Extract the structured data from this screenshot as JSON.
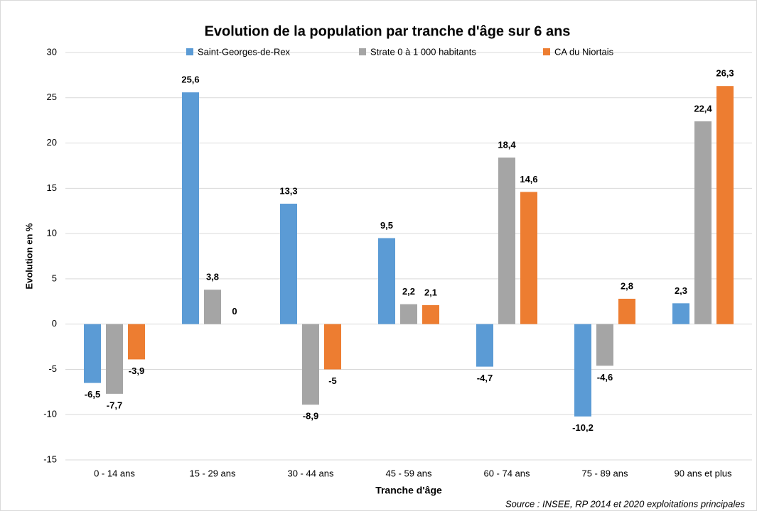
{
  "chart_data": {
    "type": "bar",
    "title": "Evolution de la population par tranche d'âge sur 6 ans",
    "x_label": "Tranche d'âge",
    "y_label": "Evolution en %",
    "source": "Source : INSEE, RP 2014 et 2020 exploitations principales",
    "categories": [
      "0 - 14 ans",
      "15 - 29 ans",
      "30 - 44 ans",
      "45 - 59 ans",
      "60 - 74 ans",
      "75 - 89 ans",
      "90 ans et plus"
    ],
    "series": [
      {
        "name": "Saint-Georges-de-Rex",
        "color": "#5b9bd5",
        "values": [
          -6.5,
          25.6,
          13.3,
          9.5,
          -4.7,
          -10.2,
          2.3
        ],
        "value_labels": [
          "-6,5",
          "25,6",
          "13,3",
          "9,5",
          "-4,7",
          "-10,2",
          "2,3"
        ]
      },
      {
        "name": "Strate 0 à 1 000 habitants",
        "color": "#a5a5a5",
        "values": [
          -7.7,
          3.8,
          -8.9,
          2.2,
          18.4,
          -4.6,
          22.4
        ],
        "value_labels": [
          "-7,7",
          "3,8",
          "-8,9",
          "2,2",
          "18,4",
          "-4,6",
          "22,4"
        ]
      },
      {
        "name": "CA du Niortais",
        "color": "#ed7d31",
        "values": [
          -3.9,
          0,
          -5,
          2.1,
          14.6,
          2.8,
          26.3
        ],
        "value_labels": [
          "-3,9",
          "0",
          "-5",
          "2,1",
          "14,6",
          "2,8",
          "26,3"
        ]
      }
    ],
    "ylim": [
      -15,
      30
    ],
    "yticks": [
      -15,
      -10,
      -5,
      0,
      5,
      10,
      15,
      20,
      25,
      30
    ],
    "grid": true,
    "legend": "top"
  }
}
